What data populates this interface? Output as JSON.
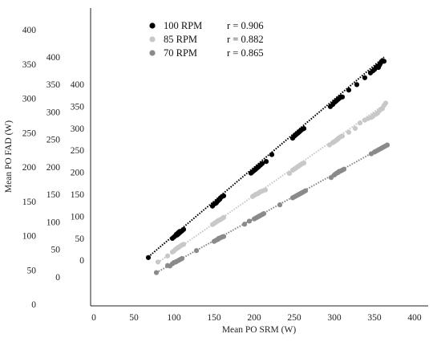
{
  "chart_data": {
    "type": "scatter",
    "title": "",
    "xlabel": "Mean PO SRM (W)",
    "ylabel": "Mean PO FAD (W)",
    "xlim": [
      0,
      400
    ],
    "x_ticks": [
      "0",
      "50",
      "100",
      "150",
      "200",
      "250",
      "300",
      "350",
      "400"
    ],
    "y_tick_columns": [
      {
        "ylim": [
          0,
          400
        ],
        "ticks": [
          "0",
          "50",
          "100",
          "150",
          "200",
          "250",
          "300",
          "350",
          "400"
        ]
      },
      {
        "ylim": [
          -50,
          400
        ],
        "ticks": [
          "0",
          "50",
          "100",
          "150",
          "200",
          "250",
          "300",
          "350",
          "400"
        ]
      },
      {
        "ylim": [
          -100,
          400
        ],
        "ticks": [
          "0",
          "50",
          "100",
          "150",
          "200",
          "250",
          "300",
          "350",
          "400"
        ]
      }
    ],
    "grid": false,
    "legend_position": "top-left",
    "series": [
      {
        "name": "100 RPM",
        "r_label": "r = 0.906",
        "color": "#000000",
        "y_column": 0,
        "trendline": {
          "x": [
            68,
            362
          ],
          "y": [
            69,
            360
          ]
        },
        "points": [
          [
            68,
            68
          ],
          [
            98,
            96
          ],
          [
            100,
            98
          ],
          [
            102,
            100
          ],
          [
            103,
            102
          ],
          [
            104,
            101
          ],
          [
            105,
            104
          ],
          [
            106,
            103
          ],
          [
            107,
            106
          ],
          [
            108,
            105
          ],
          [
            110,
            107
          ],
          [
            112,
            109
          ],
          [
            148,
            143
          ],
          [
            150,
            146
          ],
          [
            152,
            147
          ],
          [
            153,
            148
          ],
          [
            154,
            150
          ],
          [
            155,
            151
          ],
          [
            156,
            152
          ],
          [
            157,
            153
          ],
          [
            158,
            155
          ],
          [
            160,
            157
          ],
          [
            162,
            158
          ],
          [
            196,
            191
          ],
          [
            198,
            193
          ],
          [
            200,
            195
          ],
          [
            201,
            196
          ],
          [
            202,
            197
          ],
          [
            203,
            198
          ],
          [
            204,
            199
          ],
          [
            205,
            200
          ],
          [
            206,
            201
          ],
          [
            208,
            203
          ],
          [
            210,
            205
          ],
          [
            215,
            208
          ],
          [
            222,
            218
          ],
          [
            248,
            242
          ],
          [
            250,
            245
          ],
          [
            251,
            246
          ],
          [
            252,
            247
          ],
          [
            253,
            248
          ],
          [
            254,
            249
          ],
          [
            255,
            250
          ],
          [
            256,
            251
          ],
          [
            257,
            252
          ],
          [
            258,
            253
          ],
          [
            260,
            255
          ],
          [
            262,
            256
          ],
          [
            295,
            288
          ],
          [
            298,
            291
          ],
          [
            300,
            294
          ],
          [
            301,
            295
          ],
          [
            302,
            296
          ],
          [
            303,
            297
          ],
          [
            304,
            298
          ],
          [
            305,
            299
          ],
          [
            306,
            300
          ],
          [
            307,
            301
          ],
          [
            308,
            302
          ],
          [
            310,
            302
          ],
          [
            318,
            312
          ],
          [
            328,
            320
          ],
          [
            338,
            330
          ],
          [
            345,
            337
          ],
          [
            348,
            340
          ],
          [
            350,
            342
          ],
          [
            352,
            345
          ],
          [
            354,
            347
          ],
          [
            355,
            345
          ],
          [
            356,
            348
          ],
          [
            357,
            350
          ],
          [
            358,
            352
          ],
          [
            360,
            355
          ],
          [
            362,
            354
          ]
        ]
      },
      {
        "name": "85 RPM",
        "r_label": "r = 0.882",
        "color": "#c8c8c8",
        "y_column": 1,
        "trendline": {
          "x": [
            80,
            365
          ],
          "y": [
            26,
            316
          ]
        },
        "points": [
          [
            80,
            27
          ],
          [
            92,
            38
          ],
          [
            98,
            45
          ],
          [
            100,
            47
          ],
          [
            102,
            50
          ],
          [
            104,
            52
          ],
          [
            105,
            53
          ],
          [
            106,
            54
          ],
          [
            108,
            56
          ],
          [
            110,
            58
          ],
          [
            112,
            59
          ],
          [
            148,
            95
          ],
          [
            150,
            97
          ],
          [
            152,
            99
          ],
          [
            154,
            101
          ],
          [
            155,
            102
          ],
          [
            156,
            103
          ],
          [
            158,
            104
          ],
          [
            160,
            106
          ],
          [
            162,
            108
          ],
          [
            198,
            146
          ],
          [
            200,
            148
          ],
          [
            202,
            150
          ],
          [
            204,
            151
          ],
          [
            205,
            152
          ],
          [
            206,
            153
          ],
          [
            208,
            155
          ],
          [
            210,
            156
          ],
          [
            214,
            158
          ],
          [
            244,
            188
          ],
          [
            248,
            194
          ],
          [
            250,
            196
          ],
          [
            252,
            198
          ],
          [
            254,
            200
          ],
          [
            255,
            201
          ],
          [
            256,
            202
          ],
          [
            258,
            204
          ],
          [
            260,
            206
          ],
          [
            262,
            207
          ],
          [
            294,
            240
          ],
          [
            298,
            244
          ],
          [
            300,
            246
          ],
          [
            302,
            248
          ],
          [
            303,
            249
          ],
          [
            304,
            250
          ],
          [
            305,
            252
          ],
          [
            306,
            253
          ],
          [
            308,
            255
          ],
          [
            310,
            256
          ],
          [
            318,
            263
          ],
          [
            326,
            270
          ],
          [
            332,
            280
          ],
          [
            338,
            285
          ],
          [
            342,
            288
          ],
          [
            346,
            290
          ],
          [
            348,
            292
          ],
          [
            350,
            295
          ],
          [
            352,
            296
          ],
          [
            354,
            298
          ],
          [
            356,
            302
          ],
          [
            358,
            305
          ],
          [
            360,
            306
          ],
          [
            362,
            312
          ],
          [
            364,
            316
          ]
        ]
      },
      {
        "name": "70 RPM",
        "r_label": "r = 0.865",
        "color": "#8a8a8a",
        "y_column": 2,
        "trendline": {
          "x": [
            78,
            366
          ],
          "y": [
            -28,
            263
          ]
        },
        "points": [
          [
            78,
            -28
          ],
          [
            92,
            -12
          ],
          [
            95,
            -13
          ],
          [
            98,
            -8
          ],
          [
            100,
            -5
          ],
          [
            102,
            -4
          ],
          [
            104,
            -2
          ],
          [
            106,
            0
          ],
          [
            108,
            2
          ],
          [
            110,
            4
          ],
          [
            128,
            22
          ],
          [
            150,
            43
          ],
          [
            152,
            45
          ],
          [
            154,
            47
          ],
          [
            155,
            48
          ],
          [
            156,
            50
          ],
          [
            158,
            51
          ],
          [
            160,
            53
          ],
          [
            162,
            54
          ],
          [
            188,
            82
          ],
          [
            194,
            89
          ],
          [
            200,
            94
          ],
          [
            202,
            96
          ],
          [
            204,
            98
          ],
          [
            206,
            100
          ],
          [
            208,
            102
          ],
          [
            210,
            104
          ],
          [
            212,
            106
          ],
          [
            232,
            126
          ],
          [
            248,
            142
          ],
          [
            250,
            144
          ],
          [
            252,
            146
          ],
          [
            254,
            148
          ],
          [
            256,
            150
          ],
          [
            258,
            152
          ],
          [
            260,
            154
          ],
          [
            262,
            156
          ],
          [
            264,
            158
          ],
          [
            296,
            188
          ],
          [
            300,
            194
          ],
          [
            302,
            197
          ],
          [
            304,
            199
          ],
          [
            305,
            200
          ],
          [
            306,
            202
          ],
          [
            308,
            203
          ],
          [
            310,
            205
          ],
          [
            312,
            207
          ],
          [
            346,
            242
          ],
          [
            350,
            246
          ],
          [
            352,
            248
          ],
          [
            354,
            250
          ],
          [
            356,
            252
          ],
          [
            358,
            254
          ],
          [
            360,
            256
          ],
          [
            362,
            258
          ],
          [
            364,
            260
          ],
          [
            366,
            262
          ]
        ]
      }
    ]
  }
}
